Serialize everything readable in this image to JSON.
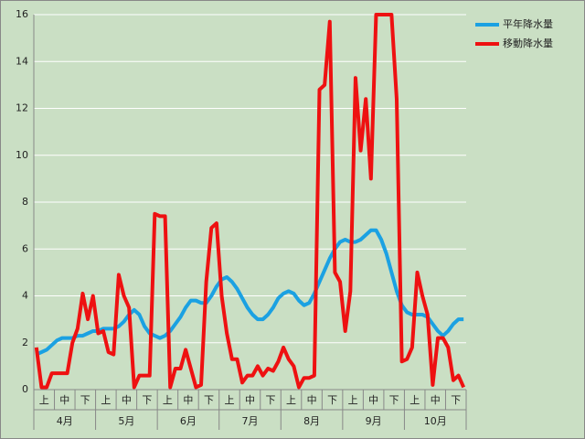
{
  "chart_data": {
    "type": "line",
    "categories": [
      null,
      null,
      "上",
      null,
      null,
      null,
      "中",
      null,
      null,
      null,
      "下",
      null,
      null,
      null,
      "上",
      null,
      null,
      null,
      "中",
      null,
      null,
      null,
      "下",
      null,
      null,
      null,
      "上",
      null,
      null,
      null,
      "中",
      null,
      null,
      null,
      "下",
      null,
      null,
      null,
      "上",
      null,
      null,
      null,
      "中",
      null,
      null,
      null,
      "下",
      null,
      null,
      null,
      "上",
      null,
      null,
      null,
      "中",
      null,
      null,
      null,
      "下",
      null,
      null,
      null,
      "上",
      null,
      null,
      null,
      "中",
      null,
      null,
      null,
      "下",
      null,
      null,
      null,
      "上",
      null,
      null,
      null,
      "中",
      null,
      null,
      null,
      "下",
      null
    ],
    "months": [
      "4月",
      "5月",
      "6月",
      "7月",
      "8月",
      "9月",
      "10月"
    ],
    "series": [
      {
        "name": "平年降水量",
        "color": "#1ba1e2",
        "values": [
          1.5,
          1.6,
          1.7,
          1.9,
          2.1,
          2.2,
          2.2,
          2.2,
          2.3,
          2.3,
          2.4,
          2.5,
          2.5,
          2.6,
          2.6,
          2.6,
          2.7,
          2.9,
          3.2,
          3.4,
          3.2,
          2.7,
          2.4,
          2.3,
          2.2,
          2.3,
          2.5,
          2.8,
          3.1,
          3.5,
          3.8,
          3.8,
          3.7,
          3.7,
          4.0,
          4.4,
          4.7,
          4.8,
          4.6,
          4.3,
          3.9,
          3.5,
          3.2,
          3.0,
          3.0,
          3.2,
          3.5,
          3.9,
          4.1,
          4.2,
          4.1,
          3.8,
          3.6,
          3.7,
          4.1,
          4.6,
          5.1,
          5.6,
          6.0,
          6.3,
          6.4,
          6.3,
          6.3,
          6.4,
          6.6,
          6.8,
          6.8,
          6.4,
          5.8,
          5.0,
          4.2,
          3.6,
          3.3,
          3.2,
          3.2,
          3.2,
          3.1,
          2.8,
          2.5,
          2.3,
          2.5,
          2.8,
          3.0,
          3.0
        ]
      },
      {
        "name": "移動降水量",
        "color": "#ee1111",
        "values": [
          1.8,
          0.1,
          0.1,
          0.7,
          0.7,
          0.7,
          0.7,
          2.0,
          2.6,
          4.1,
          3.0,
          4.0,
          2.4,
          2.5,
          1.6,
          1.5,
          4.9,
          4.0,
          3.5,
          0.1,
          0.6,
          0.6,
          0.6,
          7.5,
          7.4,
          7.4,
          0.1,
          0.9,
          0.9,
          1.7,
          0.9,
          0.1,
          0.2,
          4.6,
          6.9,
          7.1,
          4.0,
          2.4,
          1.3,
          1.3,
          0.3,
          0.6,
          0.6,
          1.0,
          0.6,
          0.9,
          0.8,
          1.2,
          1.8,
          1.3,
          1.0,
          0.1,
          0.5,
          0.5,
          0.6,
          12.8,
          13.0,
          15.7,
          5.0,
          4.6,
          2.5,
          4.2,
          13.3,
          10.2,
          12.4,
          9.0,
          16.0,
          16.0,
          16.0,
          16.0,
          12.4,
          1.2,
          1.3,
          1.8,
          5.0,
          4.0,
          3.2,
          0.2,
          2.2,
          2.2,
          1.8,
          0.4,
          0.6,
          0.1
        ]
      }
    ],
    "ylim": [
      0,
      16
    ],
    "yticks": [
      0,
      2,
      4,
      6,
      8,
      10,
      12,
      14,
      16
    ],
    "grid": true
  }
}
